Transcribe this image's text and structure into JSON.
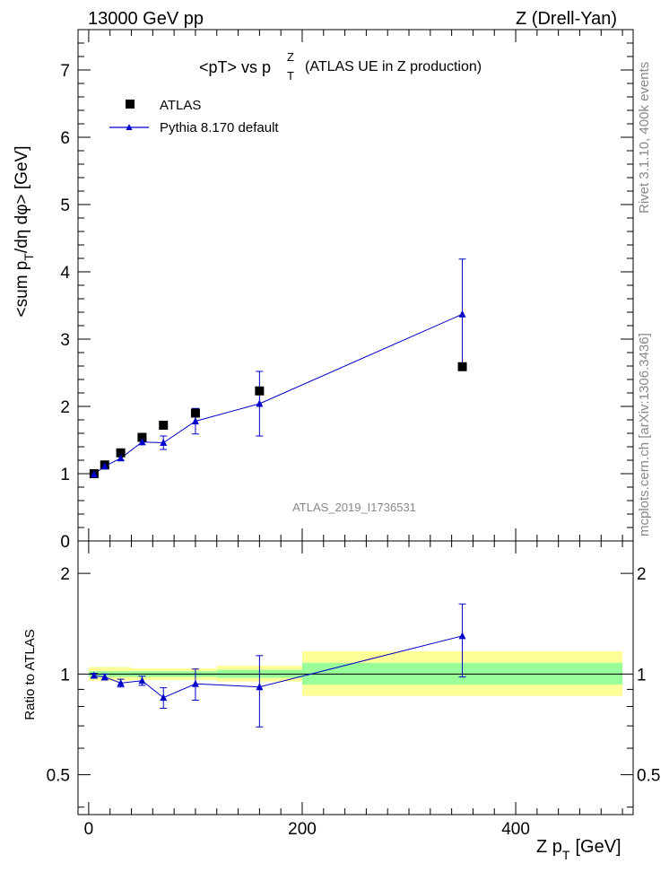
{
  "header": {
    "left": "13000 GeV pp",
    "right": "Z (Drell-Yan)"
  },
  "side_labels": {
    "rivet": "Rivet 3.1.10,  400k events",
    "mcplots": "mcplots.cern.ch [arXiv:1306.3436]"
  },
  "chart_data": [
    {
      "type": "scatter",
      "title_prefix": "<pT> vs p",
      "title_sup": "Z",
      "title_sub": "T",
      "title_suffix": "(ATLAS UE in Z production)",
      "ylabel_pre": "<sum p",
      "ylabel_sub": "T",
      "ylabel_post": "/dη dφ> [GeV]",
      "analysis_tag": "ATLAS_2019_I1736531",
      "xlim": [
        -10,
        510
      ],
      "ylim": [
        0,
        7.6
      ],
      "yticks": [
        "0",
        "1",
        "2",
        "3",
        "4",
        "5",
        "6",
        "7"
      ],
      "legend_placement": "top-left",
      "series": [
        {
          "name": "ATLAS",
          "color": "#000000",
          "marker": "square",
          "x": [
            5,
            15,
            30,
            50,
            70,
            100,
            160,
            350
          ],
          "y": [
            1.0,
            1.13,
            1.31,
            1.54,
            1.72,
            1.9,
            2.23,
            2.59
          ]
        },
        {
          "name": "Pythia 8.170 default",
          "color": "#0000cc",
          "marker": "triangle",
          "x": [
            5,
            15,
            30,
            50,
            70,
            100,
            160,
            350
          ],
          "y": [
            0.99,
            1.11,
            1.23,
            1.47,
            1.46,
            1.78,
            2.04,
            3.37
          ],
          "yerr": [
            0.02,
            0.03,
            0.03,
            0.04,
            0.1,
            0.19,
            0.48,
            0.82
          ]
        }
      ]
    },
    {
      "type": "scatter",
      "ylabel": "Ratio to ATLAS",
      "xlabel_pre": "Z p",
      "xlabel_sub": "T",
      "xlabel_post": "[GeV]",
      "xticks": [
        "0",
        "200",
        "400"
      ],
      "yticks_left": [
        "0.5",
        "1",
        "2"
      ],
      "yticks_right": [
        "0.5",
        "1",
        "2"
      ],
      "ylim": [
        0.38,
        2.5
      ],
      "yscale": "log",
      "bands": [
        {
          "x0": 0,
          "x1": 40,
          "yellow": [
            0.955,
            1.05
          ],
          "green": [
            0.98,
            1.02
          ]
        },
        {
          "x0": 40,
          "x1": 120,
          "yellow": [
            0.96,
            1.04
          ],
          "green": [
            0.98,
            1.02
          ]
        },
        {
          "x0": 120,
          "x1": 200,
          "yellow": [
            0.95,
            1.06
          ],
          "green": [
            0.975,
            1.03
          ]
        },
        {
          "x0": 200,
          "x1": 500,
          "yellow": [
            0.86,
            1.17
          ],
          "green": [
            0.93,
            1.08
          ]
        }
      ],
      "series": [
        {
          "name": "Pythia 8.170 default",
          "color": "#0000cc",
          "x": [
            5,
            15,
            30,
            50,
            70,
            100,
            160,
            350
          ],
          "y": [
            0.99,
            0.98,
            0.94,
            0.955,
            0.85,
            0.935,
            0.915,
            1.3
          ],
          "yerr": [
            0.015,
            0.02,
            0.025,
            0.03,
            0.06,
            0.1,
            0.22,
            0.32
          ]
        }
      ]
    }
  ]
}
